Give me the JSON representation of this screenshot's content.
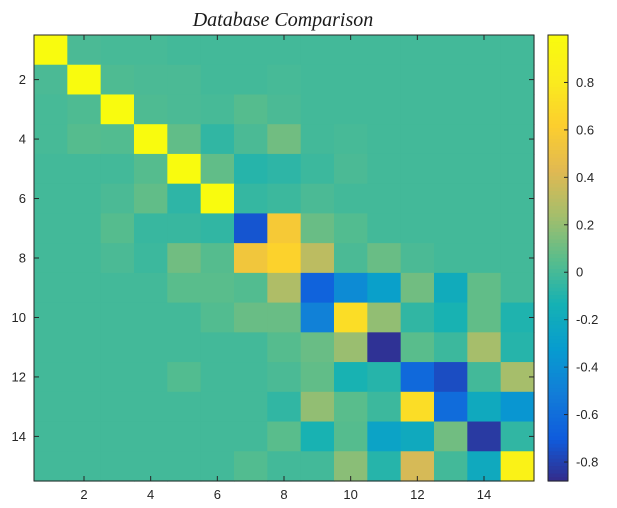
{
  "chart_data": {
    "type": "heatmap",
    "title": "Database Comparison",
    "xlabel": "",
    "ylabel": "",
    "x_ticks": [
      "2",
      "4",
      "6",
      "8",
      "10",
      "12",
      "14"
    ],
    "y_ticks": [
      "2",
      "4",
      "6",
      "8",
      "10",
      "12",
      "14"
    ],
    "x_range": [
      1,
      15
    ],
    "y_range": [
      1,
      15
    ],
    "y_direction": "top-to-bottom",
    "colorbar": {
      "position": "right",
      "colormap": "parula",
      "range": [
        -0.88,
        1.0
      ],
      "ticks": [
        "0.8",
        "0.6",
        "0.4",
        "0.2",
        "0",
        "-0.2",
        "-0.4",
        "-0.6",
        "-0.8"
      ],
      "tick_values": [
        0.8,
        0.6,
        0.4,
        0.2,
        0,
        -0.2,
        -0.4,
        -0.6,
        -0.8
      ]
    },
    "matrix": [
      [
        1.0,
        0.02,
        0.01,
        0.01,
        0.0,
        0.0,
        0.0,
        0.0,
        0.0,
        0.0,
        0.0,
        0.0,
        0.0,
        0.0,
        0.0
      ],
      [
        0.02,
        1.0,
        0.03,
        0.02,
        0.02,
        0.0,
        0.0,
        0.01,
        0.0,
        0.0,
        0.0,
        0.0,
        0.0,
        0.0,
        0.0
      ],
      [
        0.01,
        0.03,
        1.0,
        0.03,
        0.02,
        0.01,
        0.05,
        0.02,
        0.0,
        0.0,
        0.0,
        0.0,
        0.0,
        0.0,
        0.0
      ],
      [
        0.01,
        0.05,
        0.04,
        1.0,
        0.08,
        -0.05,
        0.02,
        0.12,
        0.0,
        0.01,
        0.0,
        0.0,
        0.0,
        0.0,
        0.0
      ],
      [
        0.0,
        0.0,
        0.0,
        0.05,
        1.0,
        0.08,
        -0.08,
        -0.06,
        -0.02,
        0.02,
        0.0,
        0.0,
        0.0,
        0.0,
        0.0
      ],
      [
        0.0,
        0.0,
        0.02,
        0.08,
        -0.06,
        1.0,
        -0.04,
        -0.02,
        0.02,
        0.0,
        0.0,
        0.0,
        0.0,
        0.0,
        0.0
      ],
      [
        0.0,
        0.0,
        0.05,
        -0.03,
        -0.03,
        -0.05,
        -0.72,
        0.58,
        0.1,
        0.04,
        0.0,
        0.0,
        0.0,
        0.0,
        0.0
      ],
      [
        0.0,
        0.0,
        0.02,
        -0.02,
        0.12,
        0.05,
        0.55,
        0.65,
        0.32,
        0.02,
        0.1,
        0.02,
        0.0,
        0.0,
        0.0
      ],
      [
        0.0,
        0.0,
        0.0,
        0.0,
        0.06,
        0.06,
        0.04,
        0.28,
        -0.65,
        -0.42,
        -0.28,
        0.12,
        -0.18,
        0.08,
        0.0
      ],
      [
        0.0,
        0.0,
        0.0,
        0.0,
        0.0,
        0.04,
        0.1,
        0.1,
        -0.48,
        0.72,
        0.2,
        -0.05,
        -0.12,
        0.08,
        -0.1
      ],
      [
        0.0,
        0.0,
        0.0,
        0.0,
        0.0,
        0.0,
        0.0,
        0.05,
        0.1,
        0.22,
        -0.85,
        0.06,
        -0.02,
        0.25,
        -0.08
      ],
      [
        0.0,
        0.0,
        0.0,
        0.0,
        0.04,
        0.0,
        0.0,
        0.02,
        0.08,
        -0.12,
        -0.08,
        -0.62,
        -0.75,
        0.0,
        0.25
      ],
      [
        0.0,
        0.0,
        0.0,
        0.0,
        0.0,
        0.0,
        0.0,
        -0.05,
        0.2,
        0.06,
        -0.02,
        0.72,
        -0.6,
        -0.2,
        -0.35
      ],
      [
        0.0,
        0.0,
        0.0,
        0.0,
        0.0,
        0.0,
        0.0,
        0.06,
        -0.12,
        0.05,
        -0.25,
        -0.2,
        0.12,
        -0.82,
        -0.05
      ],
      [
        0.0,
        0.0,
        0.0,
        0.0,
        0.0,
        0.0,
        0.04,
        0.0,
        0.0,
        0.18,
        -0.08,
        0.4,
        0.0,
        -0.2,
        0.9
      ]
    ]
  }
}
